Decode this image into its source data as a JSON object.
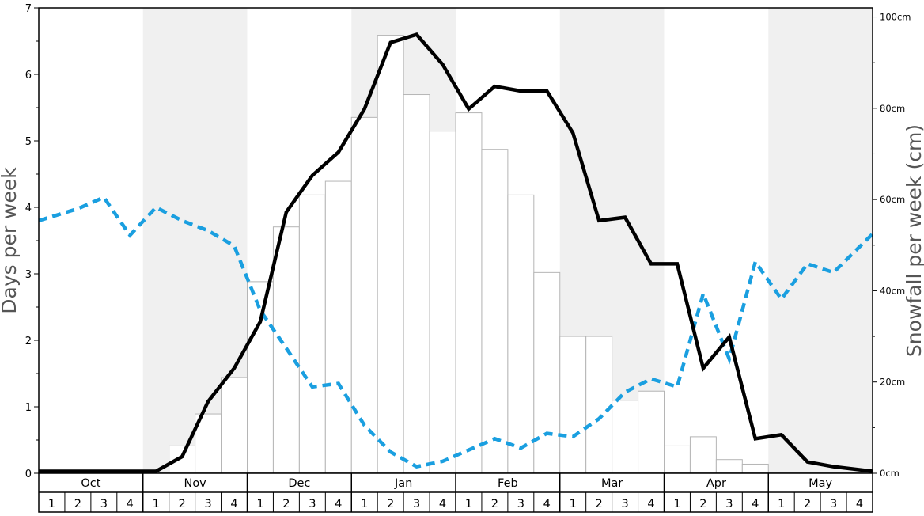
{
  "chart_data": {
    "type": "bar+line",
    "title": "",
    "ylabel_left": "Days per week",
    "ylabel_right": "Snowfall per week (cm)",
    "ylim_left": [
      0,
      7
    ],
    "ylim_right": [
      0,
      102
    ],
    "left_ticks": [
      "0",
      "1",
      "2",
      "3",
      "4",
      "5",
      "6",
      "7"
    ],
    "right_ticks": [
      {
        "value": 0,
        "label": "0cm"
      },
      {
        "value": 20,
        "label": "20cm"
      },
      {
        "value": 40,
        "label": "40cm"
      },
      {
        "value": 60,
        "label": "60cm"
      },
      {
        "value": 80,
        "label": "80cm"
      },
      {
        "value": 100,
        "label": "100cm"
      }
    ],
    "months": [
      "Oct",
      "Nov",
      "Dec",
      "Jan",
      "Feb",
      "Mar",
      "Apr",
      "May"
    ],
    "week_labels": [
      "1",
      "2",
      "3",
      "4"
    ],
    "shaded_months": [
      "Nov",
      "Jan",
      "Mar",
      "May"
    ],
    "shade_color": "#f0f0f0",
    "snowfall_bars_cm": [
      0,
      0,
      0,
      0,
      0,
      6,
      13,
      21,
      42,
      54,
      61,
      64,
      78,
      96,
      83,
      75,
      79,
      71,
      61,
      44,
      30,
      30,
      16,
      18,
      6,
      8,
      3,
      2,
      0,
      0,
      0,
      0
    ],
    "series": [
      {
        "name": "",
        "axis": "left",
        "style": "solid",
        "color": "#000000",
        "values": [
          0.03,
          0.03,
          0.03,
          0.03,
          0.03,
          0.25,
          1.08,
          1.58,
          2.28,
          3.93,
          4.48,
          4.83,
          5.48,
          6.48,
          6.6,
          6.15,
          5.48,
          5.82,
          5.75,
          5.75,
          5.12,
          3.8,
          3.85,
          3.15,
          3.15,
          1.58,
          2.05,
          0.52,
          0.58,
          0.17,
          0.1,
          0.03
        ]
      },
      {
        "name": "",
        "axis": "left",
        "style": "dashed",
        "color": "#1a9fe0",
        "values": [
          3.8,
          3.98,
          4.15,
          3.58,
          4.0,
          3.8,
          3.65,
          3.42,
          2.45,
          1.88,
          1.3,
          1.35,
          0.72,
          0.32,
          0.1,
          0.18,
          0.35,
          0.52,
          0.38,
          0.6,
          0.55,
          0.82,
          1.22,
          1.42,
          1.3,
          2.7,
          1.72,
          3.18,
          2.62,
          3.15,
          3.02,
          3.6
        ]
      }
    ]
  }
}
